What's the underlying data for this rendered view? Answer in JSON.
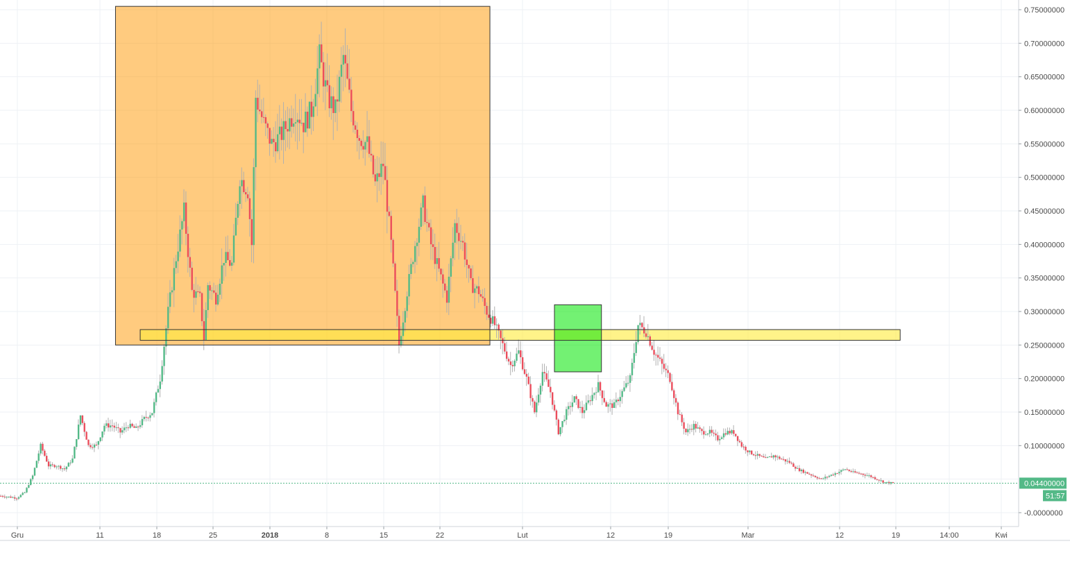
{
  "chart_data": {
    "type": "candlestick",
    "price_axis": {
      "min": -0.01,
      "max": 0.76,
      "ticks": [
        "0.75000000",
        "0.70000000",
        "0.65000000",
        "0.60000000",
        "0.55000000",
        "0.50000000",
        "0.45000000",
        "0.40000000",
        "0.35000000",
        "0.30000000",
        "0.25000000",
        "0.20000000",
        "0.15000000",
        "0.10000000",
        "0.05000000",
        "-0.0000000"
      ],
      "tick_values": [
        0.75,
        0.7,
        0.65,
        0.6,
        0.55,
        0.5,
        0.45,
        0.4,
        0.35,
        0.3,
        0.25,
        0.2,
        0.15,
        0.1,
        0.05,
        0.0
      ]
    },
    "time_axis": {
      "labels": [
        "Gru",
        "11",
        "18",
        "25",
        "2018",
        "8",
        "15",
        "22",
        "Lut",
        "12",
        "19",
        "Mar",
        "12",
        "19",
        "14:00",
        "Kwi"
      ],
      "bold_labels": [
        "2018"
      ]
    },
    "last_price": {
      "label": "0.04400000",
      "value": 0.044,
      "color": "#53b987"
    },
    "countdown": {
      "label": "51:57"
    },
    "colors": {
      "up": "#53b987",
      "down": "#eb4d5c",
      "wick": "#b0b0b0",
      "grid": "#eef1f4",
      "axis_text": "#4a4a4a"
    },
    "price_path": [
      [
        0,
        0.025
      ],
      [
        2,
        0.022
      ],
      [
        3,
        0.03
      ],
      [
        4,
        0.055
      ],
      [
        5,
        0.1
      ],
      [
        6,
        0.07
      ],
      [
        7,
        0.07
      ],
      [
        8,
        0.065
      ],
      [
        9,
        0.08
      ],
      [
        10,
        0.145
      ],
      [
        11,
        0.1
      ],
      [
        12,
        0.1
      ],
      [
        13,
        0.13
      ],
      [
        14,
        0.13
      ],
      [
        15,
        0.12
      ],
      [
        16,
        0.13
      ],
      [
        17,
        0.125
      ],
      [
        18,
        0.14
      ],
      [
        19,
        0.15
      ],
      [
        20,
        0.2
      ],
      [
        21,
        0.3
      ],
      [
        22,
        0.38
      ],
      [
        23,
        0.45
      ],
      [
        24,
        0.33
      ],
      [
        25,
        0.32
      ],
      [
        25.5,
        0.26
      ],
      [
        26,
        0.34
      ],
      [
        27,
        0.32
      ],
      [
        28,
        0.38
      ],
      [
        29,
        0.37
      ],
      [
        30,
        0.5
      ],
      [
        31,
        0.48
      ],
      [
        31.5,
        0.4
      ],
      [
        32,
        0.62
      ],
      [
        33,
        0.58
      ],
      [
        34,
        0.55
      ],
      [
        35,
        0.56
      ],
      [
        36,
        0.58
      ],
      [
        37,
        0.6
      ],
      [
        38,
        0.58
      ],
      [
        39,
        0.6
      ],
      [
        40,
        0.68
      ],
      [
        41,
        0.62
      ],
      [
        42,
        0.6
      ],
      [
        43,
        0.68
      ],
      [
        44,
        0.6
      ],
      [
        45,
        0.56
      ],
      [
        46,
        0.55
      ],
      [
        47,
        0.49
      ],
      [
        48,
        0.52
      ],
      [
        49,
        0.4
      ],
      [
        50,
        0.25
      ],
      [
        51,
        0.33
      ],
      [
        52,
        0.4
      ],
      [
        53,
        0.46
      ],
      [
        54,
        0.4
      ],
      [
        55,
        0.36
      ],
      [
        56,
        0.32
      ],
      [
        57,
        0.43
      ],
      [
        58,
        0.4
      ],
      [
        59,
        0.34
      ],
      [
        60,
        0.33
      ],
      [
        61,
        0.3
      ],
      [
        62,
        0.28
      ],
      [
        63,
        0.25
      ],
      [
        64,
        0.22
      ],
      [
        65,
        0.24
      ],
      [
        66,
        0.2
      ],
      [
        67,
        0.15
      ],
      [
        68,
        0.21
      ],
      [
        69,
        0.18
      ],
      [
        70,
        0.12
      ],
      [
        71,
        0.15
      ],
      [
        72,
        0.17
      ],
      [
        73,
        0.15
      ],
      [
        74,
        0.17
      ],
      [
        75,
        0.19
      ],
      [
        76,
        0.16
      ],
      [
        77,
        0.16
      ],
      [
        78,
        0.18
      ],
      [
        79,
        0.2
      ],
      [
        80,
        0.28
      ],
      [
        81,
        0.27
      ],
      [
        82,
        0.24
      ],
      [
        83,
        0.22
      ],
      [
        84,
        0.2
      ],
      [
        85,
        0.15
      ],
      [
        86,
        0.12
      ],
      [
        87,
        0.13
      ],
      [
        88,
        0.12
      ],
      [
        89,
        0.12
      ],
      [
        90,
        0.11
      ],
      [
        91,
        0.12
      ],
      [
        92,
        0.12
      ],
      [
        93,
        0.1
      ],
      [
        94,
        0.09
      ],
      [
        95,
        0.085
      ],
      [
        96,
        0.08
      ],
      [
        97,
        0.085
      ],
      [
        98,
        0.08
      ],
      [
        99,
        0.075
      ],
      [
        100,
        0.065
      ],
      [
        101,
        0.06
      ],
      [
        102,
        0.055
      ],
      [
        103,
        0.05
      ],
      [
        104,
        0.055
      ],
      [
        105,
        0.06
      ],
      [
        106,
        0.065
      ],
      [
        107,
        0.06
      ],
      [
        108,
        0.058
      ],
      [
        109,
        0.055
      ],
      [
        110,
        0.05
      ],
      [
        111,
        0.045
      ],
      [
        112,
        0.044
      ]
    ],
    "annotations": [
      {
        "type": "rect",
        "kind": "orange-box",
        "from_day": 14.5,
        "to_day": 61.5,
        "top": 0.755,
        "bottom": 0.25,
        "fill": "rgba(255,152,0,0.5)"
      },
      {
        "type": "rect",
        "kind": "yellow-band",
        "from_day": 17.6,
        "to_day": 113,
        "top": 0.273,
        "bottom": 0.257,
        "fill": "rgba(255,235,59,0.6)"
      },
      {
        "type": "rect",
        "kind": "green-box",
        "from_day": 69.6,
        "to_day": 75.5,
        "top": 0.31,
        "bottom": 0.21,
        "fill": "rgba(0,230,0,0.55)"
      }
    ]
  }
}
